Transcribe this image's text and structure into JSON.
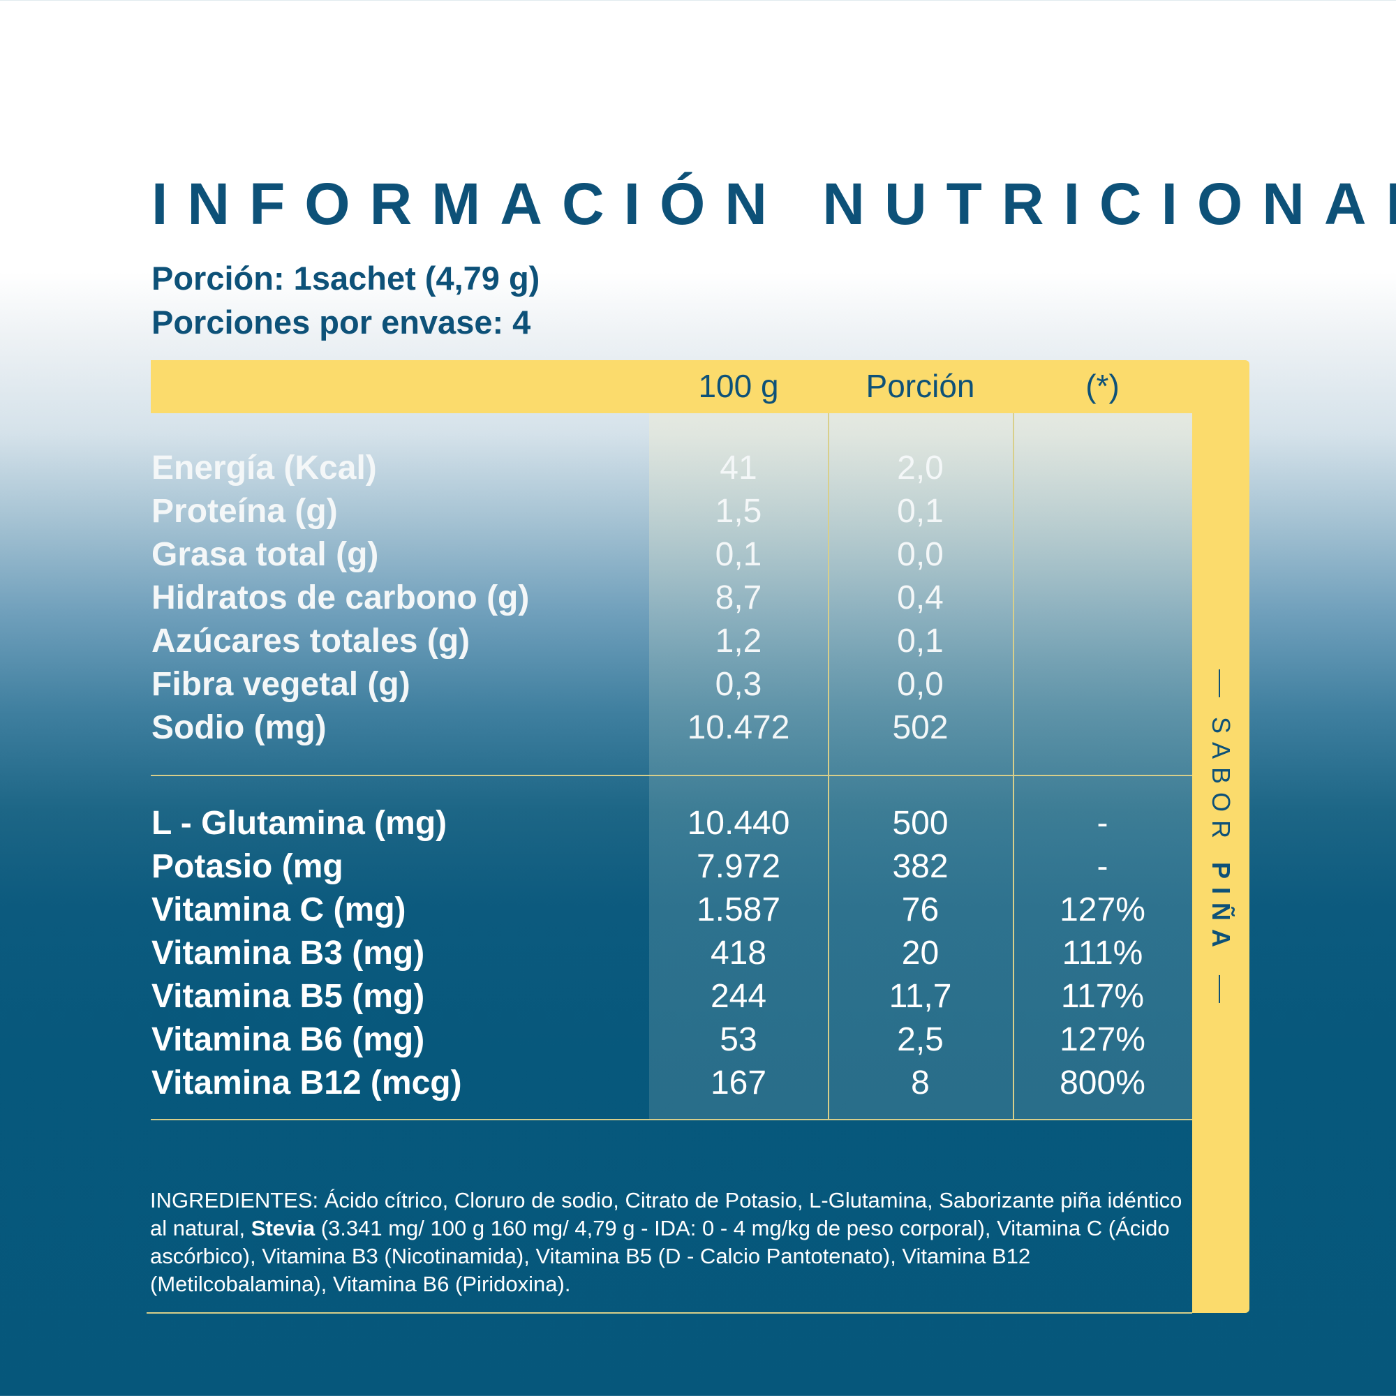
{
  "title": "INFORMACIÓN NUTRICIONAL",
  "portion": "Porción: 1sachet (4,79 g)",
  "servings": "Porciones por envase: 4",
  "headers": [
    "100 g",
    "Porción",
    "(*)"
  ],
  "nutrients": [
    {
      "label": "Energía (Kcal)",
      "per100": "41",
      "portion": "2,0",
      "pct": ""
    },
    {
      "label": "Proteína (g)",
      "per100": "1,5",
      "portion": "0,1",
      "pct": ""
    },
    {
      "label": "Grasa total (g)",
      "per100": "0,1",
      "portion": "0,0",
      "pct": ""
    },
    {
      "label": "Hidratos de carbono (g)",
      "per100": "8,7",
      "portion": "0,4",
      "pct": ""
    },
    {
      "label": "Azúcares totales (g)",
      "per100": "1,2",
      "portion": "0,1",
      "pct": ""
    },
    {
      "label": "Fibra vegetal (g)",
      "per100": "0,3",
      "portion": "0,0",
      "pct": ""
    },
    {
      "label": "Sodio (mg)",
      "per100": "10.472",
      "portion": "502",
      "pct": ""
    }
  ],
  "supplements": [
    {
      "label": "L - Glutamina (mg)",
      "per100": "10.440",
      "portion": "500",
      "pct": "-"
    },
    {
      "label": "Potasio (mg",
      "per100": "7.972",
      "portion": "382",
      "pct": "-"
    },
    {
      "label": "Vitamina C (mg)",
      "per100": "1.587",
      "portion": "76",
      "pct": "127%"
    },
    {
      "label": "Vitamina B3 (mg)",
      "per100": "418",
      "portion": "20",
      "pct": "111%"
    },
    {
      "label": "Vitamina B5 (mg)",
      "per100": "244",
      "portion": "11,7",
      "pct": "117%"
    },
    {
      "label": "Vitamina B6 (mg)",
      "per100": "53",
      "portion": "2,5",
      "pct": "127%"
    },
    {
      "label": "Vitamina B12 (mcg)",
      "per100": "167",
      "portion": "8",
      "pct": "800%"
    }
  ],
  "ingredients": {
    "prefix": "INGREDIENTES: Ácido cítrico, Cloruro de sodio, Citrato de Potasio, L-Glutamina, Saborizante piña idéntico al natural, ",
    "bold": "Stevia",
    "suffix": " (3.341 mg/ 100 g 160 mg/ 4,79 g - IDA: 0 - 4 mg/kg de peso corporal), Vitamina C (Ácido ascórbico), Vitamina B3 (Nicotinamida), Vitamina B5 (D - Calcio Pantotenato), Vitamina B12 (Metilcobalamina),  Vitamina B6 (Piridoxina)."
  },
  "side": {
    "prefix": "SABOR",
    "flavor": "PIÑA"
  },
  "colors": {
    "navy": "#0d5178",
    "yellow": "#fbdb6c",
    "deep_blue": "#06577b"
  }
}
